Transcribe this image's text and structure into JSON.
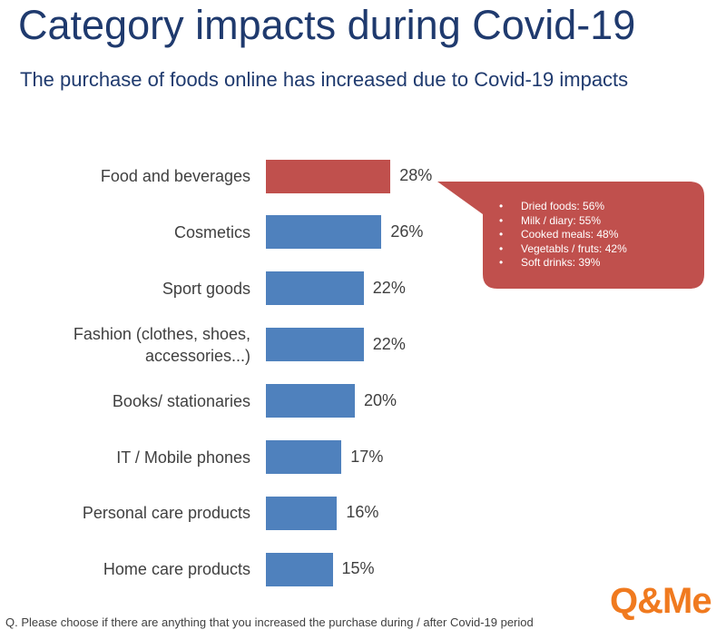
{
  "header": {
    "title": "Category impacts during Covid-19",
    "subtitle": "The purchase of foods online has increased due to Covid-19 impacts"
  },
  "chart_data": {
    "type": "bar",
    "orientation": "horizontal",
    "categories": [
      "Food and beverages",
      "Cosmetics",
      "Sport goods",
      "Fashion (clothes, shoes, accessories...)",
      "Books/ stationaries",
      "IT / Mobile phones",
      "Personal care products",
      "Home care products"
    ],
    "values": [
      28,
      26,
      22,
      22,
      20,
      17,
      16,
      15
    ],
    "value_labels": [
      "28%",
      "26%",
      "22%",
      "22%",
      "20%",
      "17%",
      "16%",
      "15%"
    ],
    "colors": [
      "#c0504d",
      "#4f81bd",
      "#4f81bd",
      "#4f81bd",
      "#4f81bd",
      "#4f81bd",
      "#4f81bd",
      "#4f81bd"
    ],
    "annotation": {
      "color": "#c0504d",
      "items": [
        "Dried foods: 56%",
        "Milk / diary: 55%",
        "Cooked meals: 48%",
        "Vegetabls / fruts: 42%",
        "Soft drinks: 39%"
      ]
    }
  },
  "footer": {
    "note": "Q. Please choose if there are anything that you increased the purchase during / after Covid-19 period",
    "logo": "Q&Me"
  }
}
